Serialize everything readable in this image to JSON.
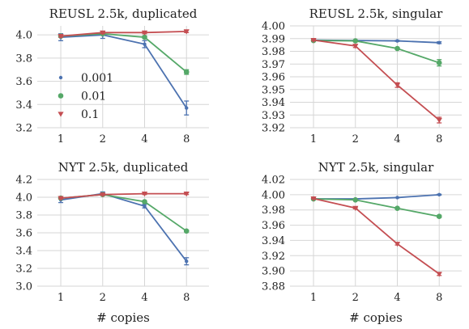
{
  "legend": {
    "placement": "lower-left of first panel",
    "entries": [
      {
        "label": "0.001",
        "color": "#4c72b0",
        "marker": "circle-small"
      },
      {
        "label": "0.01",
        "color": "#55a868",
        "marker": "circle"
      },
      {
        "label": "0.1",
        "color": "#c44e52",
        "marker": "triangle-down"
      }
    ]
  },
  "xlabel": "# copies",
  "chart_data": [
    {
      "type": "line",
      "title": "REUSL 2.5k, duplicated",
      "x": [
        1,
        2,
        4,
        8
      ],
      "xticks": [
        "1",
        "2",
        "4",
        "8"
      ],
      "ylim": [
        3.2,
        4.05
      ],
      "yticks": [
        "3.2",
        "3.4",
        "3.6",
        "3.8",
        "4.0"
      ],
      "grid": true,
      "series": [
        {
          "name": "0.001",
          "color": "#4c72b0",
          "marker": "circle-small",
          "values": [
            3.98,
            4.0,
            3.92,
            3.37
          ],
          "errors": [
            0.03,
            0.03,
            0.03,
            0.06
          ]
        },
        {
          "name": "0.01",
          "color": "#55a868",
          "marker": "circle",
          "values": [
            3.99,
            4.01,
            3.98,
            3.68
          ],
          "errors": [
            0.01,
            0.01,
            0.01,
            0.02
          ]
        },
        {
          "name": "0.1",
          "color": "#c44e52",
          "marker": "triangle-down",
          "values": [
            3.99,
            4.02,
            4.02,
            4.03
          ],
          "errors": [
            0.01,
            0.01,
            0.01,
            0.01
          ]
        }
      ]
    },
    {
      "type": "line",
      "title": "REUSL 2.5k, singular",
      "x": [
        1,
        2,
        4,
        8
      ],
      "xticks": [
        "1",
        "2",
        "4",
        "8"
      ],
      "ylim": [
        3.92,
        4.0
      ],
      "yticks": [
        "3.92",
        "3.93",
        "3.94",
        "3.95",
        "3.96",
        "3.97",
        "3.98",
        "3.99",
        "4.00"
      ],
      "grid": true,
      "series": [
        {
          "name": "0.001",
          "color": "#4c72b0",
          "marker": "circle-small",
          "values": [
            3.9888,
            3.9885,
            3.9882,
            3.9868
          ],
          "errors": [
            0.0004,
            0.0004,
            0.0004,
            0.0007
          ]
        },
        {
          "name": "0.01",
          "color": "#55a868",
          "marker": "circle",
          "values": [
            3.9885,
            3.9882,
            3.9822,
            3.971
          ],
          "errors": [
            0.0006,
            0.0006,
            0.0008,
            0.0025
          ]
        },
        {
          "name": "0.1",
          "color": "#c44e52",
          "marker": "triangle-down",
          "values": [
            3.9888,
            3.9842,
            3.9535,
            3.926
          ],
          "errors": [
            0.0006,
            0.0012,
            0.0018,
            0.0022
          ]
        }
      ]
    },
    {
      "type": "line",
      "title": "NYT 2.5k, duplicated",
      "x": [
        1,
        2,
        4,
        8
      ],
      "xticks": [
        "1",
        "2",
        "4",
        "8"
      ],
      "ylim": [
        3.0,
        4.2
      ],
      "yticks": [
        "3.0",
        "3.2",
        "3.4",
        "3.6",
        "3.8",
        "4.0",
        "4.2"
      ],
      "grid": true,
      "series": [
        {
          "name": "0.001",
          "color": "#4c72b0",
          "marker": "circle-small",
          "values": [
            3.97,
            4.04,
            3.9,
            3.28
          ],
          "errors": [
            0.03,
            0.02,
            0.02,
            0.04
          ]
        },
        {
          "name": "0.01",
          "color": "#55a868",
          "marker": "circle",
          "values": [
            3.99,
            4.03,
            3.95,
            3.62
          ],
          "errors": [
            0.01,
            0.01,
            0.01,
            0.01
          ]
        },
        {
          "name": "0.1",
          "color": "#c44e52",
          "marker": "triangle-down",
          "values": [
            3.99,
            4.03,
            4.04,
            4.04
          ],
          "errors": [
            0.01,
            0.01,
            0.01,
            0.01
          ]
        }
      ]
    },
    {
      "type": "line",
      "title": "NYT 2.5k, singular",
      "x": [
        1,
        2,
        4,
        8
      ],
      "xticks": [
        "1",
        "2",
        "4",
        "8"
      ],
      "ylim": [
        3.88,
        4.02
      ],
      "yticks": [
        "3.88",
        "3.90",
        "3.92",
        "3.94",
        "3.96",
        "3.98",
        "4.00",
        "4.02"
      ],
      "grid": true,
      "series": [
        {
          "name": "0.001",
          "color": "#4c72b0",
          "marker": "circle-small",
          "values": [
            3.9945,
            3.9945,
            3.9962,
            4.0
          ],
          "errors": [
            0.0003,
            0.0003,
            0.0004,
            0.0006
          ]
        },
        {
          "name": "0.01",
          "color": "#55a868",
          "marker": "circle",
          "values": [
            3.9945,
            3.9932,
            3.9822,
            3.9715
          ],
          "errors": [
            0.0004,
            0.0005,
            0.0008,
            0.0015
          ]
        },
        {
          "name": "0.1",
          "color": "#c44e52",
          "marker": "triangle-down",
          "values": [
            3.995,
            3.9825,
            3.9355,
            3.896
          ],
          "errors": [
            0.0005,
            0.001,
            0.0015,
            0.002
          ]
        }
      ]
    }
  ]
}
